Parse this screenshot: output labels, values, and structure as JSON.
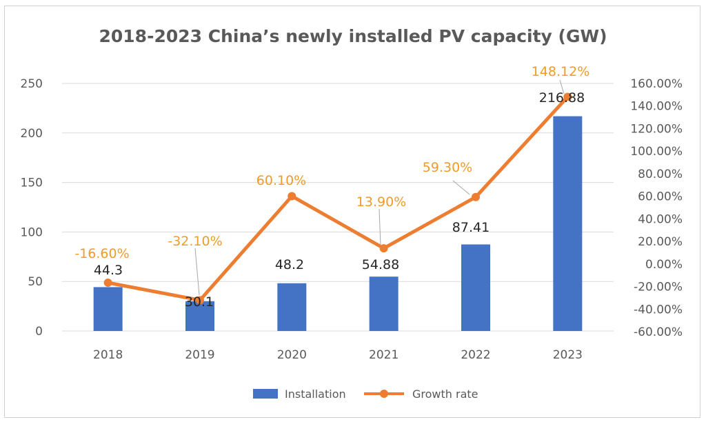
{
  "chart_data": {
    "type": "bar",
    "title": "2018-2023 China’s newly installed PV capacity (GW)",
    "categories": [
      "2018",
      "2019",
      "2020",
      "2021",
      "2022",
      "2023"
    ],
    "series": [
      {
        "name": "Installation",
        "type": "bar",
        "axis": "left",
        "values": [
          44.3,
          30.1,
          48.2,
          54.88,
          87.41,
          216.88
        ],
        "labels": [
          "44.3",
          "30.1",
          "48.2",
          "54.88",
          "87.41",
          "216.88"
        ],
        "color": "#4472C4"
      },
      {
        "name": "Growth rate",
        "type": "line",
        "axis": "right",
        "values": [
          -16.6,
          -32.1,
          60.1,
          13.9,
          59.3,
          148.12
        ],
        "labels": [
          "-16.60%",
          "-32.10%",
          "60.10%",
          "13.90%",
          "59.30%",
          "148.12%"
        ],
        "color": "#ED7D31",
        "label_color": "#ED9C2A"
      }
    ],
    "y_left": {
      "min": 0,
      "max": 250,
      "ticks": [
        "0",
        "50",
        "100",
        "150",
        "200",
        "250"
      ]
    },
    "y_right": {
      "min": -60,
      "max": 160,
      "ticks": [
        "-60.00%",
        "-40.00%",
        "-20.00%",
        "0.00%",
        "20.00%",
        "40.00%",
        "60.00%",
        "80.00%",
        "100.00%",
        "120.00%",
        "140.00%",
        "160.00%"
      ]
    },
    "grid": true,
    "legend_position": "bottom"
  }
}
